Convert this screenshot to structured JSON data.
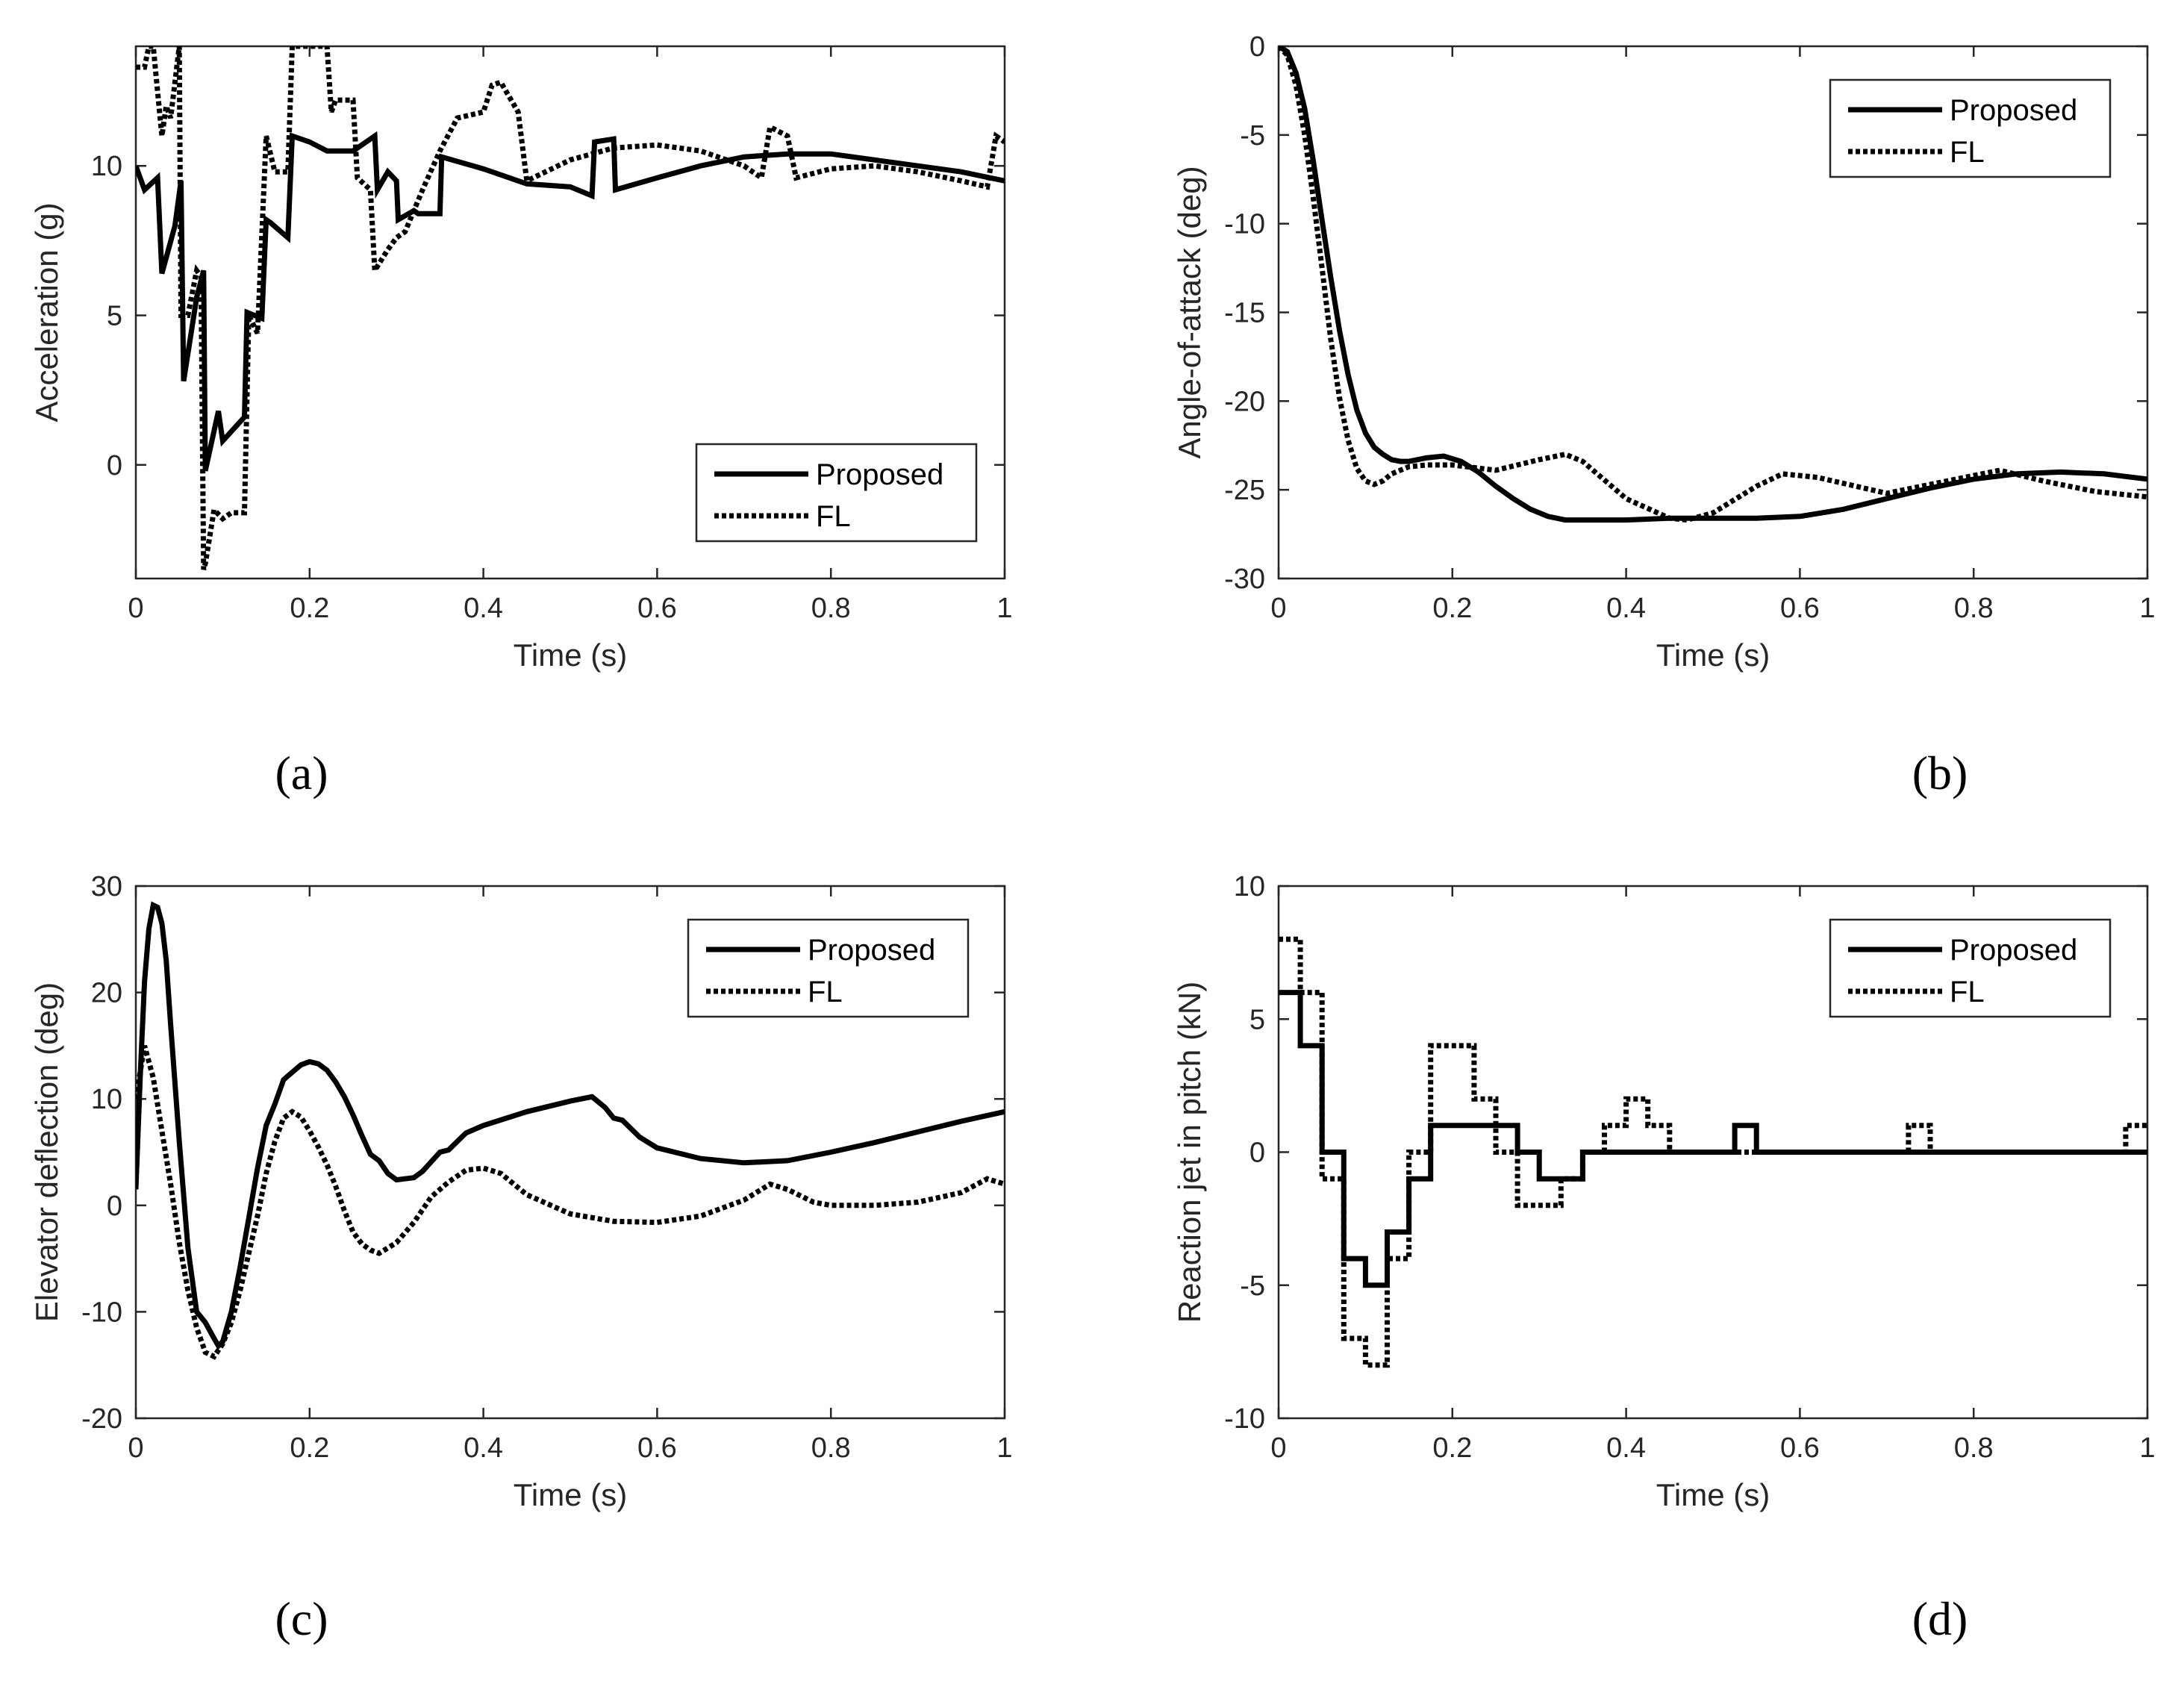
{
  "colors": {
    "line": "#000000",
    "axis": "#262626",
    "background": "#ffffff"
  },
  "chart_data": [
    {
      "type": "line",
      "panel_label": "(a)",
      "xlabel": "Time (s)",
      "ylabel": "Acceleration (g)",
      "xlim": [
        0,
        1
      ],
      "ylim": [
        -3.8,
        14
      ],
      "xticks": [
        0,
        0.2,
        0.4,
        0.6,
        0.8,
        1
      ],
      "xtick_labels": [
        "0",
        "0.2",
        "0.4",
        "0.6",
        "0.8",
        "1"
      ],
      "yticks": [
        0,
        5,
        10
      ],
      "ytick_labels": [
        "0",
        "5",
        "10"
      ],
      "legend": {
        "position": "bottom-right",
        "entries": [
          "Proposed",
          "FL"
        ]
      },
      "series": [
        {
          "name": "Proposed",
          "style": "solid",
          "x": [
            0,
            0.01,
            0.025,
            0.03,
            0.045,
            0.052,
            0.055,
            0.07,
            0.078,
            0.08,
            0.095,
            0.1,
            0.125,
            0.128,
            0.145,
            0.15,
            0.155,
            0.175,
            0.18,
            0.2,
            0.22,
            0.25,
            0.275,
            0.278,
            0.29,
            0.3,
            0.302,
            0.32,
            0.325,
            0.35,
            0.352,
            0.4,
            0.45,
            0.5,
            0.525,
            0.528,
            0.55,
            0.552,
            0.6,
            0.65,
            0.7,
            0.75,
            0.8,
            0.85,
            0.9,
            0.95,
            1.0
          ],
          "y": [
            10,
            9.2,
            9.6,
            6.4,
            8,
            9.5,
            2.8,
            5.6,
            6.5,
            -0.2,
            1.8,
            0.8,
            1.6,
            5.1,
            4.9,
            8.2,
            8.1,
            7.6,
            11,
            10.8,
            10.5,
            10.5,
            11,
            9.2,
            9.8,
            9.5,
            8.2,
            8.5,
            8.4,
            8.4,
            10.3,
            9.9,
            9.4,
            9.3,
            9,
            10.8,
            10.9,
            9.2,
            9.6,
            10,
            10.3,
            10.4,
            10.4,
            10.2,
            10,
            9.8,
            9.5
          ]
        },
        {
          "name": "FL",
          "style": "dotted",
          "x": [
            0,
            0.01,
            0.015,
            0.02,
            0.03,
            0.035,
            0.04,
            0.05,
            0.052,
            0.06,
            0.07,
            0.075,
            0.078,
            0.08,
            0.09,
            0.1,
            0.11,
            0.125,
            0.13,
            0.14,
            0.15,
            0.16,
            0.175,
            0.18,
            0.2,
            0.22,
            0.225,
            0.23,
            0.25,
            0.255,
            0.27,
            0.275,
            0.29,
            0.3,
            0.31,
            0.33,
            0.35,
            0.37,
            0.4,
            0.41,
            0.42,
            0.44,
            0.45,
            0.5,
            0.55,
            0.6,
            0.65,
            0.7,
            0.72,
            0.73,
            0.75,
            0.76,
            0.8,
            0.85,
            0.9,
            0.95,
            0.98,
            0.99,
            1.0
          ],
          "y": [
            13.3,
            13.3,
            14,
            14,
            11,
            12,
            11.6,
            14,
            5,
            5,
            6.5,
            6.3,
            -3.5,
            -3.3,
            -1.5,
            -1.8,
            -1.6,
            -1.6,
            5,
            4.4,
            11,
            9.8,
            9.8,
            14,
            14,
            14,
            11.8,
            12.2,
            12.2,
            9.6,
            9.2,
            6.5,
            7.2,
            7.6,
            7.8,
            9.2,
            10.5,
            11.6,
            11.8,
            12.7,
            12.8,
            11.8,
            9.5,
            10.2,
            10.6,
            10.7,
            10.5,
            10,
            9.6,
            11.3,
            11,
            9.6,
            9.9,
            10,
            9.8,
            9.5,
            9.3,
            11,
            10.8
          ]
        }
      ]
    },
    {
      "type": "line",
      "panel_label": "(b)",
      "xlabel": "Time (s)",
      "ylabel": "Angle-of-attack (deg)",
      "xlim": [
        0,
        1
      ],
      "ylim": [
        -30,
        0
      ],
      "xticks": [
        0,
        0.2,
        0.4,
        0.6,
        0.8,
        1
      ],
      "xtick_labels": [
        "0",
        "0.2",
        "0.4",
        "0.6",
        "0.8",
        "1"
      ],
      "yticks": [
        0,
        -5,
        -10,
        -15,
        -20,
        -25,
        -30
      ],
      "ytick_labels": [
        "0",
        "-5",
        "-10",
        "-15",
        "-20",
        "-25",
        "-30"
      ],
      "legend": {
        "position": "top-right",
        "entries": [
          "Proposed",
          "FL"
        ]
      },
      "series": [
        {
          "name": "Proposed",
          "style": "solid",
          "x": [
            0,
            0.01,
            0.02,
            0.03,
            0.04,
            0.05,
            0.06,
            0.07,
            0.08,
            0.09,
            0.1,
            0.11,
            0.12,
            0.13,
            0.14,
            0.15,
            0.17,
            0.19,
            0.21,
            0.23,
            0.25,
            0.27,
            0.29,
            0.31,
            0.33,
            0.35,
            0.4,
            0.45,
            0.5,
            0.55,
            0.6,
            0.65,
            0.7,
            0.75,
            0.8,
            0.85,
            0.9,
            0.95,
            1.0
          ],
          "y": [
            0,
            -0.3,
            -1.5,
            -3.5,
            -6.5,
            -9.8,
            -13,
            -16,
            -18.5,
            -20.5,
            -21.8,
            -22.6,
            -23,
            -23.3,
            -23.4,
            -23.4,
            -23.2,
            -23.1,
            -23.4,
            -24,
            -24.8,
            -25.5,
            -26.1,
            -26.5,
            -26.7,
            -26.7,
            -26.7,
            -26.6,
            -26.6,
            -26.6,
            -26.5,
            -26.1,
            -25.5,
            -24.9,
            -24.4,
            -24.1,
            -24,
            -24.1,
            -24.4
          ]
        },
        {
          "name": "FL",
          "style": "dotted",
          "x": [
            0,
            0.01,
            0.02,
            0.03,
            0.04,
            0.05,
            0.06,
            0.07,
            0.08,
            0.09,
            0.1,
            0.11,
            0.12,
            0.13,
            0.15,
            0.17,
            0.2,
            0.25,
            0.3,
            0.33,
            0.35,
            0.4,
            0.45,
            0.47,
            0.5,
            0.55,
            0.58,
            0.62,
            0.7,
            0.78,
            0.83,
            0.88,
            0.94,
            1.0
          ],
          "y": [
            0,
            -0.5,
            -2.2,
            -5,
            -8.6,
            -12.5,
            -16.5,
            -19.8,
            -22.2,
            -23.8,
            -24.5,
            -24.7,
            -24.5,
            -24.1,
            -23.7,
            -23.6,
            -23.6,
            -23.9,
            -23.3,
            -23,
            -23.4,
            -25.5,
            -26.6,
            -26.7,
            -26.3,
            -24.8,
            -24.1,
            -24.3,
            -25.2,
            -24.4,
            -23.9,
            -24.5,
            -25.1,
            -25.4
          ]
        }
      ]
    },
    {
      "type": "line",
      "panel_label": "(c)",
      "xlabel": "Time (s)",
      "ylabel": "Elevator deflection (deg)",
      "xlim": [
        0,
        1
      ],
      "ylim": [
        -20,
        30
      ],
      "xticks": [
        0,
        0.2,
        0.4,
        0.6,
        0.8,
        1
      ],
      "xtick_labels": [
        "0",
        "0.2",
        "0.4",
        "0.6",
        "0.8",
        "1"
      ],
      "yticks": [
        30,
        20,
        10,
        0,
        -10,
        -20
      ],
      "ytick_labels": [
        "30",
        "20",
        "10",
        "0",
        "-10",
        "-20"
      ],
      "legend": {
        "position": "top-right",
        "entries": [
          "Proposed",
          "FL"
        ]
      },
      "series": [
        {
          "name": "Proposed",
          "style": "solid",
          "x": [
            0,
            0.005,
            0.01,
            0.015,
            0.02,
            0.025,
            0.03,
            0.035,
            0.04,
            0.05,
            0.06,
            0.07,
            0.075,
            0.08,
            0.09,
            0.095,
            0.1,
            0.11,
            0.12,
            0.13,
            0.14,
            0.15,
            0.16,
            0.17,
            0.18,
            0.19,
            0.2,
            0.21,
            0.22,
            0.23,
            0.24,
            0.25,
            0.26,
            0.27,
            0.28,
            0.29,
            0.3,
            0.32,
            0.33,
            0.35,
            0.36,
            0.38,
            0.4,
            0.45,
            0.5,
            0.525,
            0.54,
            0.55,
            0.56,
            0.58,
            0.6,
            0.65,
            0.7,
            0.75,
            0.8,
            0.85,
            0.9,
            0.95,
            1.0
          ],
          "y": [
            1.5,
            12,
            21,
            26,
            28.2,
            28,
            26.5,
            23,
            17,
            6,
            -4,
            -10,
            -10.5,
            -11,
            -12.5,
            -13.2,
            -12.8,
            -10,
            -5.8,
            -1.2,
            3.5,
            7.5,
            9.5,
            11.8,
            12.5,
            13.2,
            13.5,
            13.3,
            12.7,
            11.6,
            10.2,
            8.5,
            6.6,
            4.8,
            4.2,
            3,
            2.4,
            2.6,
            3.2,
            5,
            5.2,
            6.8,
            7.5,
            8.8,
            9.8,
            10.2,
            9.2,
            8.2,
            8,
            6.4,
            5.4,
            4.4,
            4,
            4.2,
            5,
            5.9,
            6.9,
            7.9,
            8.8
          ]
        },
        {
          "name": "FL",
          "style": "dotted",
          "x": [
            0,
            0.01,
            0.02,
            0.03,
            0.04,
            0.05,
            0.06,
            0.07,
            0.08,
            0.09,
            0.1,
            0.11,
            0.12,
            0.13,
            0.14,
            0.15,
            0.16,
            0.17,
            0.18,
            0.19,
            0.2,
            0.21,
            0.22,
            0.23,
            0.24,
            0.25,
            0.26,
            0.27,
            0.28,
            0.3,
            0.32,
            0.34,
            0.36,
            0.38,
            0.4,
            0.42,
            0.45,
            0.5,
            0.55,
            0.6,
            0.65,
            0.7,
            0.73,
            0.75,
            0.78,
            0.8,
            0.85,
            0.9,
            0.95,
            0.98,
            1.0
          ],
          "y": [
            10,
            15,
            12,
            7,
            2,
            -3.5,
            -8,
            -11.5,
            -13.8,
            -14.2,
            -13,
            -11,
            -8,
            -4.5,
            -1,
            3,
            6,
            8.2,
            8.8,
            8.3,
            7,
            5.5,
            3.8,
            1.8,
            -0.5,
            -2.5,
            -3.6,
            -4.2,
            -4.5,
            -3.5,
            -1.6,
            0.8,
            2.2,
            3.3,
            3.5,
            3,
            1,
            -0.8,
            -1.5,
            -1.6,
            -1,
            0.5,
            2,
            1.5,
            0.3,
            0,
            0,
            0.3,
            1.2,
            2.5,
            2
          ]
        }
      ]
    },
    {
      "type": "line",
      "panel_label": "(d)",
      "xlabel": "Time (s)",
      "ylabel": "Reaction jet in pitch (kN)",
      "xlim": [
        0,
        1
      ],
      "ylim": [
        -10,
        10
      ],
      "xticks": [
        0,
        0.2,
        0.4,
        0.6,
        0.8,
        1
      ],
      "xtick_labels": [
        "0",
        "0.2",
        "0.4",
        "0.6",
        "0.8",
        "1"
      ],
      "yticks": [
        10,
        5,
        0,
        -5,
        -10
      ],
      "ytick_labels": [
        "10",
        "5",
        "0",
        "-5",
        "-10"
      ],
      "legend": {
        "position": "top-right",
        "entries": [
          "Proposed",
          "FL"
        ]
      },
      "series": [
        {
          "name": "Proposed",
          "style": "solid",
          "step": true,
          "x": [
            0,
            0.025,
            0.05,
            0.075,
            0.1,
            0.125,
            0.15,
            0.175,
            0.2,
            0.225,
            0.25,
            0.275,
            0.3,
            0.325,
            0.35,
            0.375,
            0.525,
            0.55,
            1.0
          ],
          "y": [
            6,
            4,
            0,
            -4,
            -5,
            -3,
            -1,
            1,
            1,
            1,
            1,
            0,
            -1,
            -1,
            0,
            0,
            1,
            0,
            0
          ]
        },
        {
          "name": "FL",
          "style": "dotted",
          "step": true,
          "x": [
            0,
            0.025,
            0.05,
            0.075,
            0.1,
            0.125,
            0.15,
            0.175,
            0.2,
            0.225,
            0.25,
            0.275,
            0.3,
            0.325,
            0.35,
            0.375,
            0.4,
            0.425,
            0.45,
            0.725,
            0.75,
            0.975,
            1.0
          ],
          "y": [
            8,
            6,
            -1,
            -7,
            -8,
            -4,
            0,
            4,
            4,
            2,
            0,
            -2,
            -2,
            -1,
            0,
            1,
            2,
            1,
            0,
            1,
            0,
            1,
            1
          ]
        }
      ]
    }
  ]
}
